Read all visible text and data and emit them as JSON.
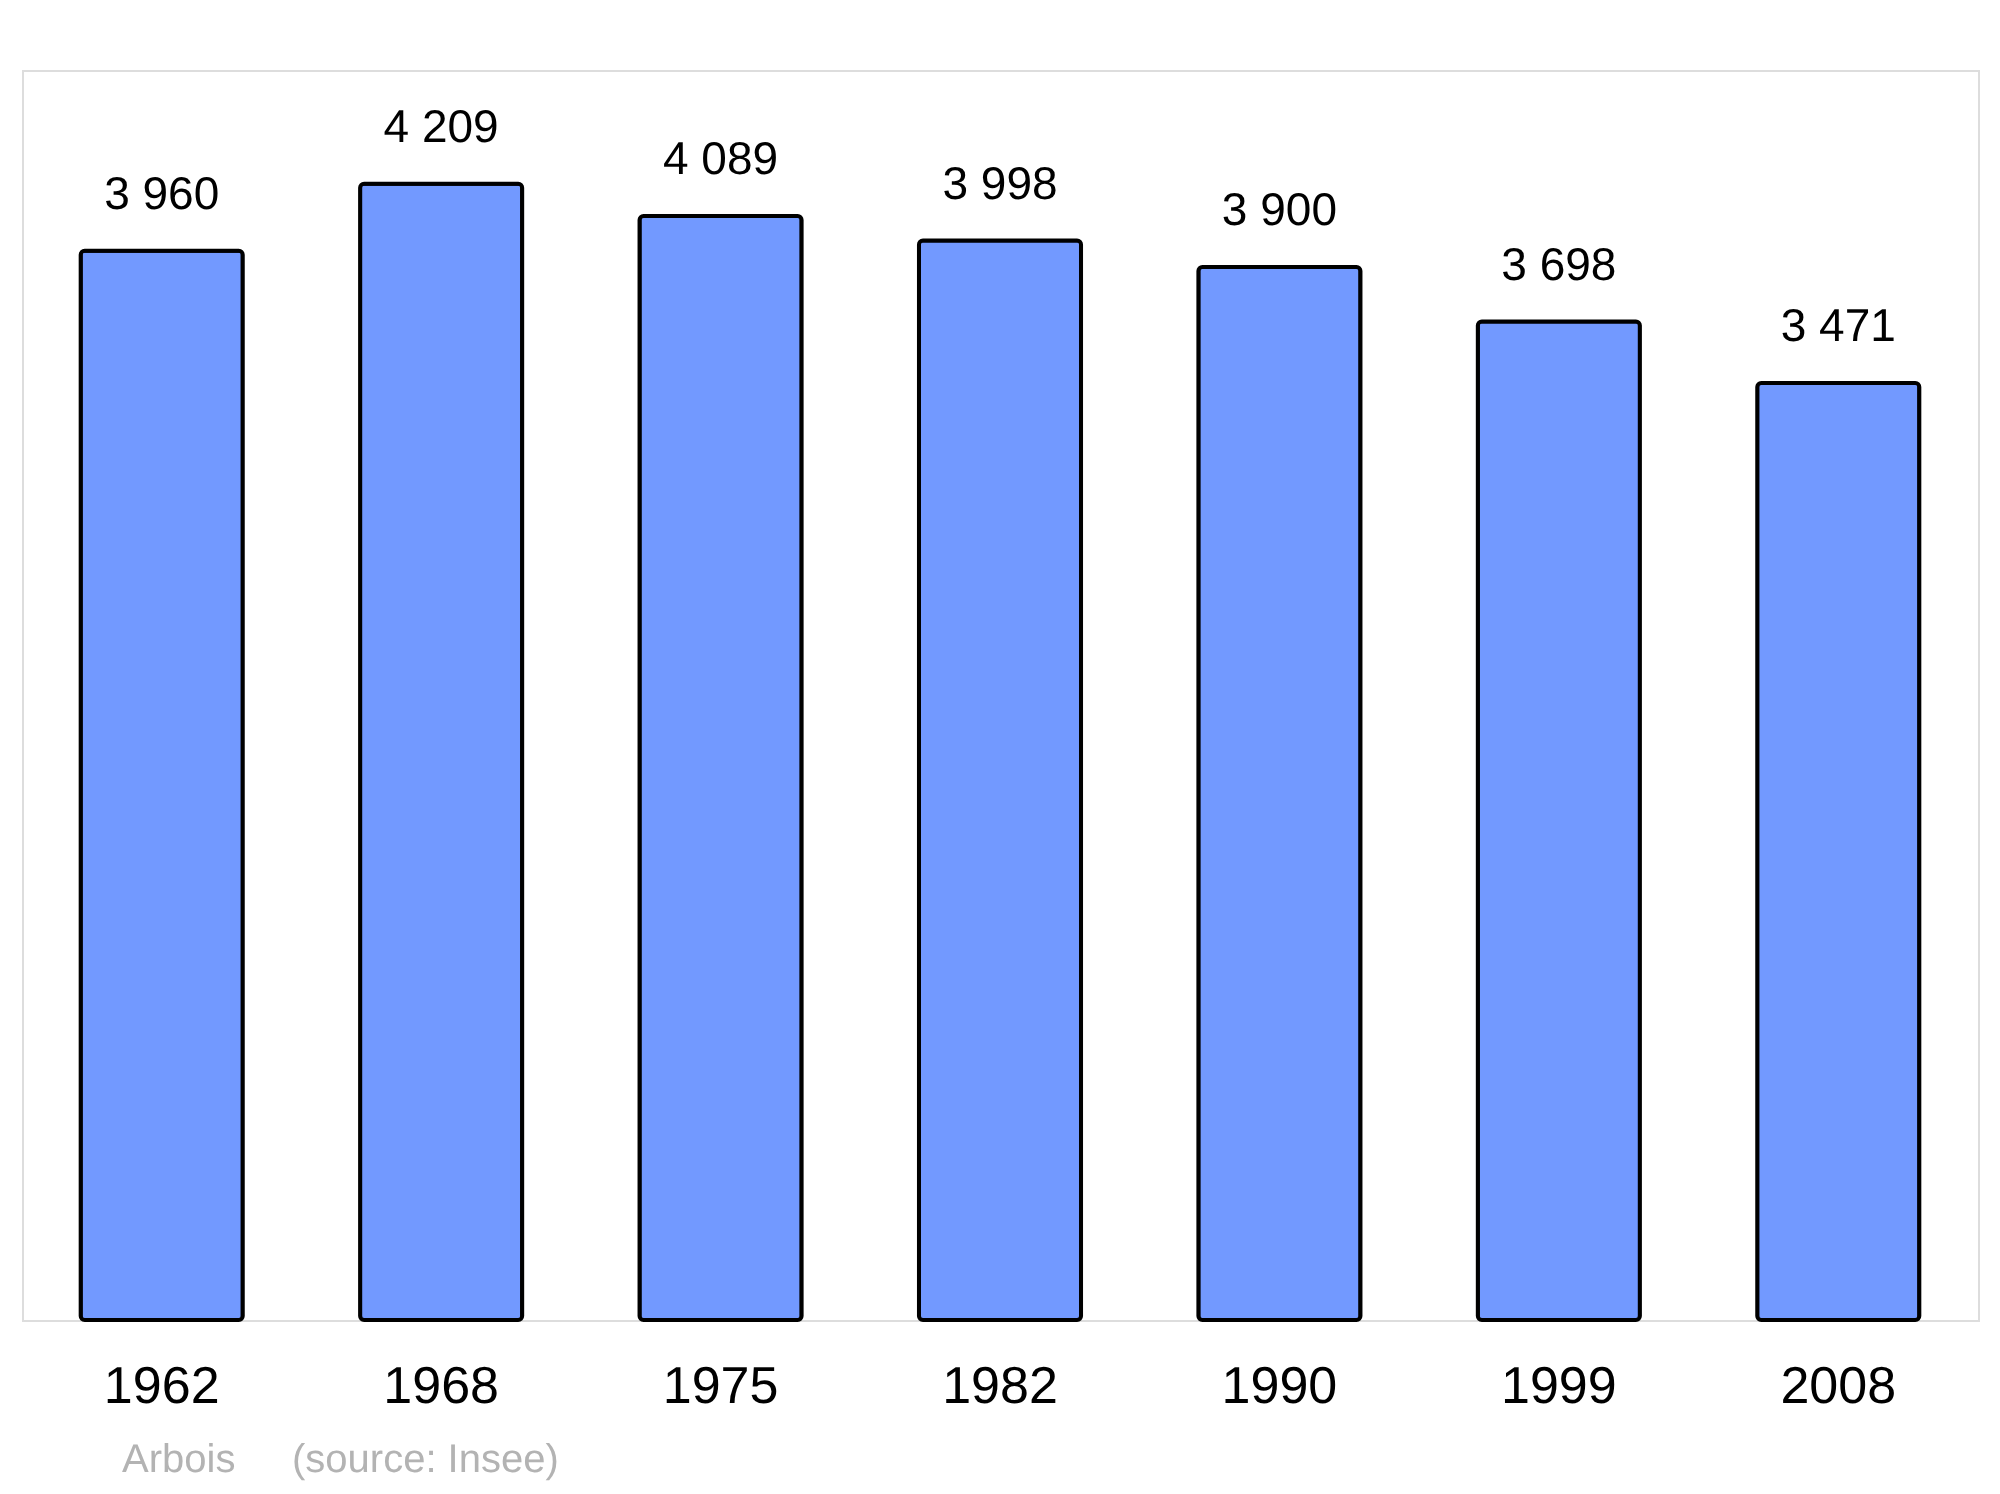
{
  "chart_data": {
    "type": "bar",
    "categories": [
      "1962",
      "1968",
      "1975",
      "1982",
      "1990",
      "1999",
      "2008"
    ],
    "values": [
      3960,
      4209,
      4089,
      3998,
      3900,
      3698,
      3471
    ],
    "value_labels": [
      "3 960",
      "4 209",
      "4 089",
      "3 998",
      "3 900",
      "3 698",
      "3 471"
    ],
    "color": "#7299ff",
    "annotations": [
      "Arbois",
      "(source: Insee)"
    ]
  }
}
